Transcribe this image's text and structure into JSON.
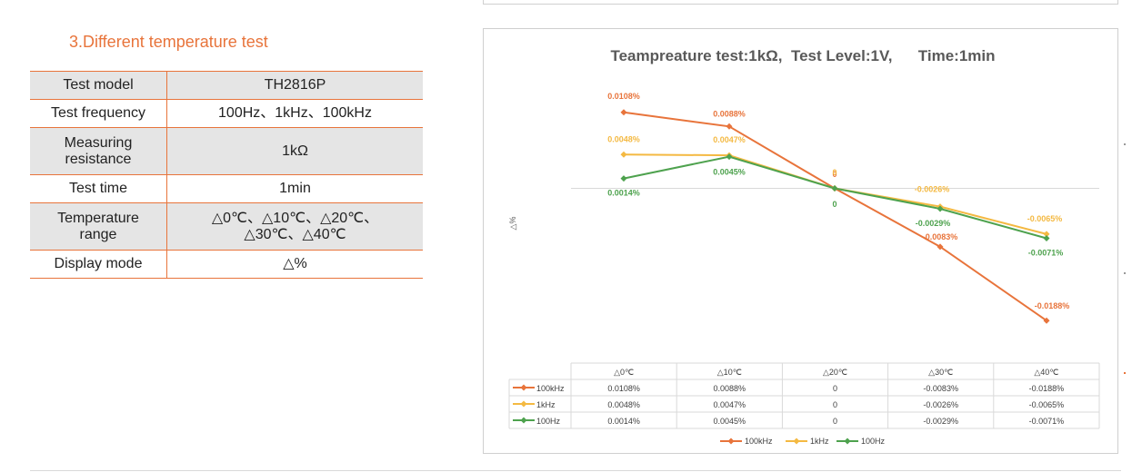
{
  "section": {
    "title": "3.Different temperature test"
  },
  "spec_table": {
    "rows": [
      {
        "label": "Test model",
        "value": "TH2816P"
      },
      {
        "label": "Test frequency",
        "value": "100Hz、1kHz、100kHz"
      },
      {
        "label": "Measuring\nresistance",
        "value": "1kΩ"
      },
      {
        "label": "Test time",
        "value": "1min"
      },
      {
        "label": "Temperature\nrange",
        "value": "△0℃、△10℃、△20℃、\n△30℃、△40℃"
      },
      {
        "label": "Display mode",
        "value": "△%"
      }
    ]
  },
  "chart_data": {
    "type": "line",
    "title": "Teampreature test:1kΩ,  Test Level:1V,      Time:1min",
    "ylabel": "△%",
    "categories": [
      "△0℃",
      "△10℃",
      "△20℃",
      "△30℃",
      "△40℃"
    ],
    "series": [
      {
        "name": "100kHz",
        "color": "#E8743B",
        "values": [
          0.0108,
          0.0088,
          0,
          -0.0083,
          -0.0188
        ],
        "labels": [
          "0.0108%",
          "0.0088%",
          "0",
          "-0.0083%",
          "-0.0188%"
        ]
      },
      {
        "name": "1kHz",
        "color": "#F4B942",
        "values": [
          0.0048,
          0.0047,
          0,
          -0.0026,
          -0.0065
        ],
        "labels": [
          "0.0048%",
          "0.0047%",
          "0",
          "-0.0026%",
          "-0.0065%"
        ]
      },
      {
        "name": "100Hz",
        "color": "#4EA24E",
        "values": [
          0.0014,
          0.0045,
          0,
          -0.0029,
          -0.0071
        ],
        "labels": [
          "0.0014%",
          "0.0045%",
          "0",
          "-0.0029%",
          "-0.0071%"
        ]
      }
    ],
    "ylim": [
      -0.0195,
      0.0115
    ],
    "grid": false,
    "legend": "bottom",
    "data_table": true
  }
}
